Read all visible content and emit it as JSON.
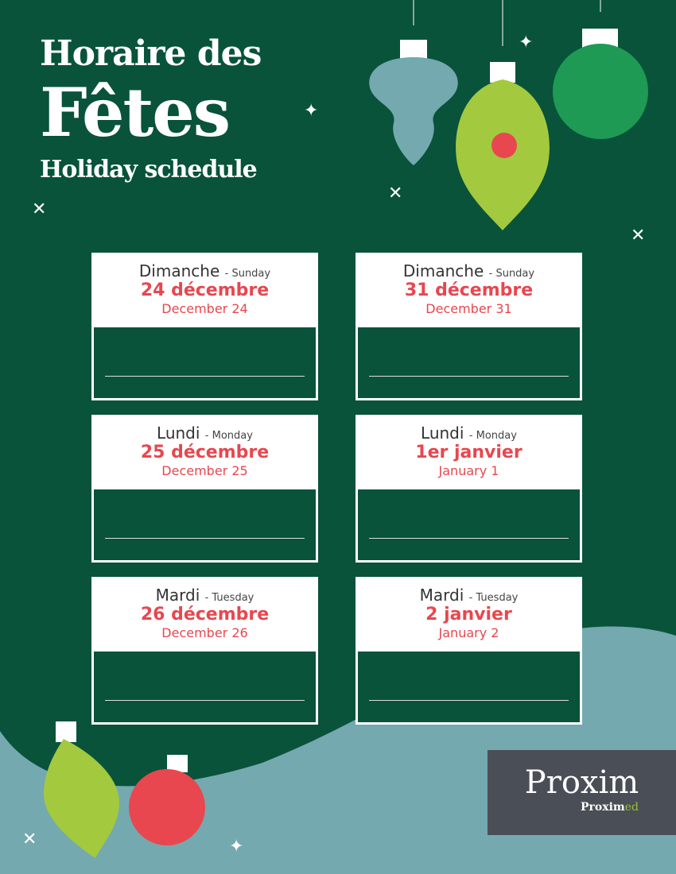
{
  "title": {
    "line1": "Horaire des",
    "line2": "Fêtes",
    "line3": "Holiday schedule"
  },
  "cards": [
    {
      "day_fr": "Dimanche",
      "day_en": "- Sunday",
      "date_fr": "24 décembre",
      "date_en": "December 24"
    },
    {
      "day_fr": "Dimanche",
      "day_en": "- Sunday",
      "date_fr": "31 décembre",
      "date_en": "December 31"
    },
    {
      "day_fr": "Lundi",
      "day_en": "- Monday",
      "date_fr": "25 décembre",
      "date_en": "December 25"
    },
    {
      "day_fr": "Lundi",
      "day_en": "- Monday",
      "date_fr": "1er janvier",
      "date_en": "January 1"
    },
    {
      "day_fr": "Mardi",
      "day_en": "- Tuesday",
      "date_fr": "26 décembre",
      "date_en": "December 26"
    },
    {
      "day_fr": "Mardi",
      "day_en": "- Tuesday",
      "date_fr": "2 janvier",
      "date_en": "January 2"
    }
  ],
  "logo": {
    "main": "Proxim",
    "sub_a": "Proxim",
    "sub_b": "ed"
  },
  "colors": {
    "green": "#08533a",
    "red": "#e8474f",
    "teal": "#74a9b0",
    "lime": "#a3c93f"
  }
}
